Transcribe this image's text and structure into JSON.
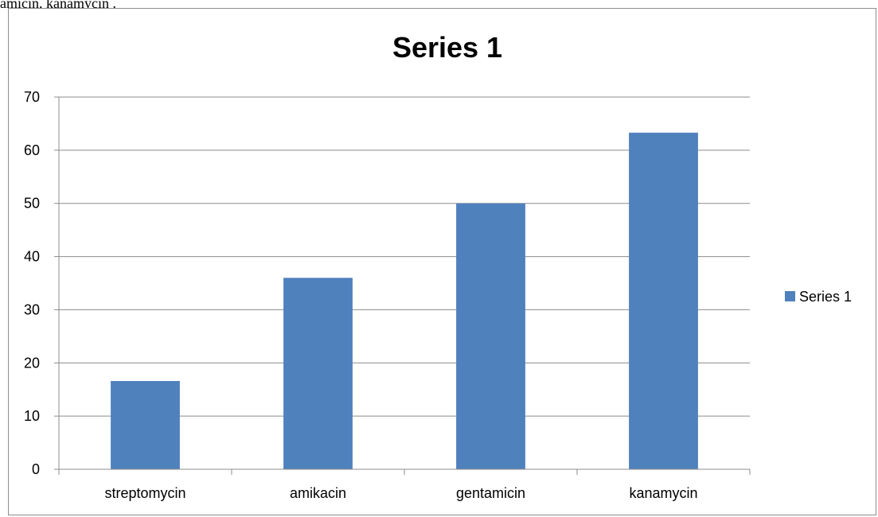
{
  "page": {
    "top_text": "amicin, kanamycin ."
  },
  "chart_data": {
    "type": "bar",
    "title": "Series 1",
    "xlabel": "",
    "ylabel": "",
    "categories": [
      "streptomycin",
      "amikacin",
      "gentamicin",
      "kanamycin"
    ],
    "series": [
      {
        "name": "Series 1",
        "values": [
          16.6,
          36,
          50,
          63.3
        ],
        "color": "#4f81bd"
      }
    ],
    "ylim": [
      0,
      70
    ],
    "yticks": [
      0,
      10,
      20,
      30,
      40,
      50,
      60,
      70
    ],
    "ytick_labels": [
      "0",
      "10",
      "20",
      "30",
      "40",
      "50",
      "60",
      "70"
    ],
    "grid": true,
    "legend": "right"
  }
}
